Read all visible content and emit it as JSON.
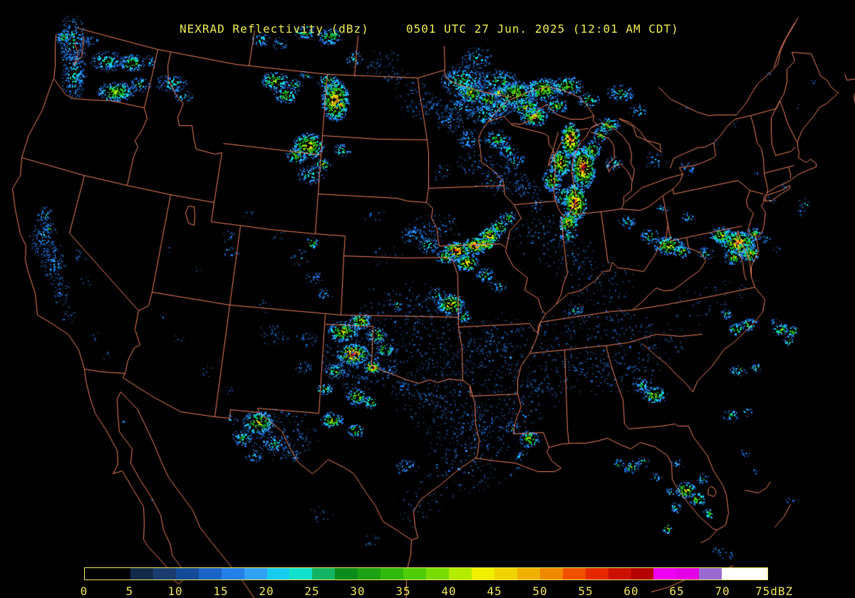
{
  "header": {
    "title": "NEXRAD Reflectivity (dBz)",
    "timestamp": "0501 UTC 27 Jun. 2025 (12:01 AM CDT)"
  },
  "colors": {
    "background": "#000000",
    "map_border": "#ff8a66",
    "title_text": "#f0ee52",
    "colorbar_border": "#f0e85c",
    "colorbar_label": "#f0e85c"
  },
  "colorbar": {
    "min_dbz": 0,
    "max_dbz": 75,
    "segment_dbz_step": 2.5,
    "ticks": [
      "0",
      "5",
      "10",
      "15",
      "20",
      "25",
      "30",
      "35",
      "40",
      "45",
      "50",
      "55",
      "60",
      "65",
      "70",
      "75dBZ"
    ],
    "segment_colors": [
      "#000000",
      "#000000",
      "#122a4a",
      "#1a3c6e",
      "#134b96",
      "#1a64c8",
      "#2480e8",
      "#30a0f4",
      "#18ccf0",
      "#10e0cc",
      "#12b464",
      "#0c8c1c",
      "#1ea014",
      "#30b80c",
      "#50cc08",
      "#78dc04",
      "#b4ec00",
      "#f0f000",
      "#f0d400",
      "#f0b000",
      "#f08800",
      "#f05000",
      "#e62800",
      "#cc1000",
      "#b40000",
      "#f000f0",
      "#e400e4",
      "#9a6ad2",
      "#ffffff",
      "#ffffff"
    ]
  },
  "radar_cells_format": "[x, y, rx, ry, max_dbz, density]",
  "radar_cells": [
    [
      100,
      58,
      14,
      26,
      26,
      0.4
    ],
    [
      103,
      103,
      12,
      24,
      26,
      0.4
    ],
    [
      88,
      52,
      7,
      7,
      34,
      0.6
    ],
    [
      125,
      57,
      8,
      6,
      20,
      0.35
    ],
    [
      150,
      85,
      16,
      10,
      30,
      0.5
    ],
    [
      185,
      88,
      13,
      8,
      38,
      0.6
    ],
    [
      162,
      128,
      18,
      9,
      42,
      0.7
    ],
    [
      196,
      118,
      10,
      8,
      30,
      0.45
    ],
    [
      210,
      86,
      8,
      6,
      25,
      0.35
    ],
    [
      240,
      116,
      15,
      9,
      28,
      0.45
    ],
    [
      256,
      134,
      9,
      6,
      24,
      0.35
    ],
    [
      62,
      300,
      8,
      8,
      24,
      0.35
    ],
    [
      60,
      332,
      13,
      22,
      20,
      0.3
    ],
    [
      74,
      368,
      12,
      20,
      20,
      0.3
    ],
    [
      68,
      320,
      6,
      5,
      30,
      0.4
    ],
    [
      85,
      408,
      9,
      13,
      16,
      0.25
    ],
    [
      95,
      443,
      7,
      9,
      14,
      0.2
    ],
    [
      110,
      360,
      7,
      9,
      12,
      0.18
    ],
    [
      120,
      395,
      6,
      8,
      12,
      0.15
    ],
    [
      132,
      470,
      6,
      6,
      10,
      0.12
    ],
    [
      146,
      498,
      5,
      5,
      10,
      0.1
    ],
    [
      230,
      350,
      8,
      6,
      10,
      0.1
    ],
    [
      280,
      380,
      6,
      5,
      10,
      0.1
    ],
    [
      322,
      355,
      8,
      7,
      16,
      0.22
    ],
    [
      350,
      300,
      6,
      5,
      18,
      0.2
    ],
    [
      320,
      330,
      9,
      7,
      12,
      0.12
    ],
    [
      250,
      475,
      6,
      5,
      12,
      0.12
    ],
    [
      292,
      520,
      7,
      6,
      13,
      0.15
    ],
    [
      320,
      548,
      6,
      5,
      14,
      0.15
    ],
    [
      230,
      445,
      5,
      4,
      11,
      0.1
    ],
    [
      385,
      113,
      13,
      9,
      42,
      0.6
    ],
    [
      400,
      133,
      11,
      8,
      38,
      0.5
    ],
    [
      412,
      119,
      8,
      6,
      30,
      0.4
    ],
    [
      496,
      82,
      8,
      8,
      24,
      0.35
    ],
    [
      460,
      115,
      10,
      8,
      40,
      0.55
    ],
    [
      470,
      140,
      13,
      20,
      54,
      0.75
    ],
    [
      478,
      147,
      5,
      4,
      60,
      0.8
    ],
    [
      432,
      204,
      15,
      12,
      50,
      0.7
    ],
    [
      415,
      217,
      10,
      8,
      40,
      0.5
    ],
    [
      452,
      230,
      8,
      6,
      40,
      0.5
    ],
    [
      480,
      210,
      8,
      6,
      34,
      0.45
    ],
    [
      435,
      245,
      13,
      9,
      28,
      0.4
    ],
    [
      365,
      55,
      9,
      7,
      28,
      0.4
    ],
    [
      392,
      60,
      8,
      6,
      24,
      0.35
    ],
    [
      428,
      45,
      10,
      7,
      33,
      0.45
    ],
    [
      462,
      50,
      12,
      8,
      38,
      0.5
    ],
    [
      430,
      104,
      7,
      5,
      28,
      0.35
    ],
    [
      520,
      300,
      14,
      9,
      11,
      0.1
    ],
    [
      540,
      358,
      18,
      11,
      11,
      0.1
    ],
    [
      585,
      140,
      22,
      18,
      13,
      0.15
    ],
    [
      560,
      110,
      14,
      9,
      14,
      0.15
    ],
    [
      535,
      90,
      20,
      16,
      12,
      0.12
    ],
    [
      668,
      80,
      16,
      10,
      22,
      0.3
    ],
    [
      608,
      150,
      12,
      8,
      17,
      0.25
    ],
    [
      620,
      243,
      16,
      9,
      13,
      0.15
    ],
    [
      650,
      113,
      22,
      16,
      30,
      0.5
    ],
    [
      700,
      113,
      18,
      11,
      30,
      0.45
    ],
    [
      660,
      130,
      12,
      9,
      46,
      0.6
    ],
    [
      685,
      140,
      10,
      8,
      44,
      0.6
    ],
    [
      700,
      128,
      6,
      5,
      52,
      0.7
    ],
    [
      722,
      132,
      20,
      13,
      42,
      0.6
    ],
    [
      738,
      150,
      13,
      9,
      46,
      0.65
    ],
    [
      762,
      125,
      16,
      11,
      44,
      0.6
    ],
    [
      795,
      120,
      16,
      9,
      40,
      0.55
    ],
    [
      825,
      140,
      11,
      7,
      34,
      0.45
    ],
    [
      852,
      175,
      11,
      8,
      38,
      0.5
    ],
    [
      870,
      130,
      13,
      9,
      28,
      0.4
    ],
    [
      895,
      155,
      9,
      7,
      24,
      0.3
    ],
    [
      700,
      150,
      14,
      9,
      30,
      0.45
    ],
    [
      680,
      160,
      18,
      11,
      25,
      0.4
    ],
    [
      645,
      150,
      16,
      9,
      22,
      0.35
    ],
    [
      630,
      170,
      14,
      11,
      20,
      0.3
    ],
    [
      658,
      195,
      12,
      10,
      24,
      0.35
    ],
    [
      697,
      195,
      12,
      9,
      34,
      0.45
    ],
    [
      712,
      210,
      10,
      8,
      28,
      0.4
    ],
    [
      723,
      225,
      9,
      7,
      25,
      0.35
    ],
    [
      748,
      162,
      13,
      9,
      48,
      0.65
    ],
    [
      780,
      148,
      11,
      7,
      40,
      0.55
    ],
    [
      800,
      195,
      9,
      16,
      60,
      0.8
    ],
    [
      786,
      228,
      10,
      13,
      52,
      0.7
    ],
    [
      774,
      252,
      9,
      11,
      44,
      0.6
    ],
    [
      790,
      275,
      8,
      9,
      40,
      0.55
    ],
    [
      818,
      234,
      11,
      20,
      60,
      0.8
    ],
    [
      806,
      284,
      11,
      18,
      58,
      0.8
    ],
    [
      797,
      312,
      9,
      11,
      50,
      0.65
    ],
    [
      795,
      332,
      8,
      6,
      30,
      0.4
    ],
    [
      830,
      210,
      9,
      9,
      44,
      0.6
    ],
    [
      842,
      188,
      8,
      7,
      36,
      0.45
    ],
    [
      860,
      228,
      8,
      7,
      30,
      0.4
    ],
    [
      700,
      250,
      26,
      17,
      14,
      0.18
    ],
    [
      672,
      228,
      22,
      13,
      14,
      0.16
    ],
    [
      738,
      262,
      14,
      10,
      18,
      0.22
    ],
    [
      752,
      285,
      10,
      8,
      16,
      0.2
    ],
    [
      640,
      352,
      13,
      9,
      60,
      0.8
    ],
    [
      666,
      344,
      11,
      8,
      60,
      0.8
    ],
    [
      686,
      330,
      10,
      8,
      54,
      0.7
    ],
    [
      680,
      342,
      8,
      6,
      58,
      0.75
    ],
    [
      700,
      318,
      8,
      7,
      44,
      0.6
    ],
    [
      712,
      305,
      8,
      6,
      34,
      0.45
    ],
    [
      655,
      368,
      11,
      8,
      50,
      0.65
    ],
    [
      624,
      360,
      10,
      7,
      40,
      0.5
    ],
    [
      600,
      344,
      11,
      8,
      30,
      0.4
    ],
    [
      580,
      330,
      13,
      9,
      22,
      0.3
    ],
    [
      610,
      320,
      26,
      15,
      14,
      0.16
    ],
    [
      680,
      385,
      9,
      7,
      30,
      0.4
    ],
    [
      698,
      400,
      8,
      6,
      24,
      0.3
    ],
    [
      632,
      427,
      13,
      10,
      50,
      0.65
    ],
    [
      650,
      444,
      8,
      6,
      34,
      0.45
    ],
    [
      612,
      414,
      9,
      7,
      28,
      0.35
    ],
    [
      558,
      428,
      5,
      4,
      34,
      0.4
    ],
    [
      437,
      340,
      6,
      5,
      42,
      0.45
    ],
    [
      420,
      360,
      10,
      8,
      16,
      0.2
    ],
    [
      440,
      390,
      9,
      7,
      18,
      0.25
    ],
    [
      455,
      412,
      8,
      6,
      22,
      0.3
    ],
    [
      390,
      330,
      9,
      7,
      13,
      0.15
    ],
    [
      380,
      470,
      16,
      12,
      12,
      0.15
    ],
    [
      370,
      430,
      8,
      6,
      14,
      0.15
    ],
    [
      495,
      497,
      15,
      10,
      60,
      0.8
    ],
    [
      522,
      515,
      8,
      6,
      58,
      0.75
    ],
    [
      480,
      465,
      14,
      10,
      46,
      0.6
    ],
    [
      505,
      450,
      11,
      8,
      44,
      0.6
    ],
    [
      528,
      470,
      10,
      8,
      40,
      0.5
    ],
    [
      540,
      490,
      8,
      6,
      44,
      0.55
    ],
    [
      470,
      520,
      10,
      8,
      38,
      0.5
    ],
    [
      455,
      545,
      8,
      6,
      34,
      0.45
    ],
    [
      500,
      556,
      10,
      8,
      42,
      0.55
    ],
    [
      520,
      564,
      8,
      6,
      40,
      0.5
    ],
    [
      465,
      590,
      11,
      8,
      42,
      0.55
    ],
    [
      498,
      604,
      8,
      6,
      38,
      0.5
    ],
    [
      505,
      505,
      36,
      32,
      15,
      0.15
    ],
    [
      430,
      475,
      11,
      8,
      18,
      0.22
    ],
    [
      425,
      515,
      8,
      6,
      22,
      0.28
    ],
    [
      362,
      593,
      15,
      11,
      46,
      0.65
    ],
    [
      340,
      614,
      10,
      8,
      34,
      0.45
    ],
    [
      385,
      623,
      11,
      8,
      30,
      0.4
    ],
    [
      408,
      638,
      9,
      7,
      24,
      0.32
    ],
    [
      355,
      640,
      8,
      6,
      27,
      0.35
    ],
    [
      322,
      590,
      7,
      6,
      20,
      0.25
    ],
    [
      390,
      610,
      38,
      26,
      13,
      0.14
    ],
    [
      545,
      520,
      8,
      6,
      24,
      0.32
    ],
    [
      562,
      544,
      9,
      7,
      21,
      0.28
    ],
    [
      598,
      558,
      8,
      6,
      19,
      0.25
    ],
    [
      570,
      655,
      11,
      8,
      21,
      0.28
    ],
    [
      592,
      478,
      55,
      42,
      11,
      0.1
    ],
    [
      622,
      558,
      50,
      40,
      11,
      0.1
    ],
    [
      660,
      608,
      42,
      34,
      11,
      0.1
    ],
    [
      562,
      430,
      42,
      26,
      11,
      0.09
    ],
    [
      700,
      500,
      40,
      34,
      11,
      0.09
    ],
    [
      730,
      558,
      36,
      30,
      11,
      0.09
    ],
    [
      640,
      660,
      38,
      26,
      11,
      0.09
    ],
    [
      590,
      708,
      26,
      22,
      10,
      0.08
    ],
    [
      520,
      758,
      8,
      6,
      16,
      0.2
    ],
    [
      450,
      722,
      13,
      9,
      11,
      0.1
    ],
    [
      760,
      330,
      34,
      22,
      11,
      0.1
    ],
    [
      800,
      360,
      30,
      22,
      11,
      0.1
    ],
    [
      840,
      392,
      34,
      24,
      11,
      0.1
    ],
    [
      840,
      440,
      34,
      24,
      10,
      0.09
    ],
    [
      878,
      468,
      30,
      22,
      10,
      0.09
    ],
    [
      700,
      470,
      30,
      22,
      10,
      0.09
    ],
    [
      670,
      500,
      26,
      18,
      11,
      0.1
    ],
    [
      690,
      600,
      34,
      26,
      11,
      0.1
    ],
    [
      780,
      480,
      42,
      30,
      11,
      0.1
    ],
    [
      820,
      520,
      38,
      26,
      11,
      0.1
    ],
    [
      760,
      540,
      30,
      22,
      10,
      0.09
    ],
    [
      880,
      520,
      34,
      24,
      11,
      0.1
    ],
    [
      920,
      480,
      30,
      22,
      10,
      0.08
    ],
    [
      980,
      430,
      26,
      17,
      9,
      0.08
    ],
    [
      1020,
      410,
      22,
      15,
      9,
      0.07
    ],
    [
      742,
      616,
      9,
      8,
      44,
      0.6
    ],
    [
      718,
      600,
      8,
      6,
      27,
      0.35
    ],
    [
      730,
      640,
      7,
      5,
      24,
      0.3
    ],
    [
      805,
      435,
      10,
      7,
      22,
      0.3
    ],
    [
      918,
      554,
      12,
      8,
      42,
      0.55
    ],
    [
      900,
      540,
      9,
      7,
      28,
      0.38
    ],
    [
      1032,
      462,
      8,
      6,
      40,
      0.5
    ],
    [
      1018,
      440,
      6,
      5,
      30,
      0.38
    ],
    [
      1050,
      455,
      8,
      6,
      35,
      0.45
    ],
    [
      1095,
      462,
      8,
      6,
      38,
      0.48
    ],
    [
      1106,
      478,
      6,
      5,
      34,
      0.42
    ],
    [
      1088,
      452,
      5,
      4,
      30,
      0.35
    ],
    [
      1112,
      465,
      6,
      5,
      40,
      0.45
    ],
    [
      1025,
      582,
      8,
      5,
      30,
      0.4
    ],
    [
      1048,
      578,
      6,
      4,
      28,
      0.35
    ],
    [
      1035,
      520,
      8,
      5,
      32,
      0.4
    ],
    [
      1060,
      515,
      6,
      5,
      28,
      0.35
    ],
    [
      938,
      344,
      14,
      9,
      46,
      0.62
    ],
    [
      912,
      331,
      10,
      7,
      34,
      0.45
    ],
    [
      956,
      352,
      8,
      6,
      40,
      0.5
    ],
    [
      1035,
      340,
      16,
      11,
      56,
      0.75
    ],
    [
      1044,
      350,
      8,
      6,
      60,
      0.7
    ],
    [
      1012,
      330,
      11,
      8,
      44,
      0.58
    ],
    [
      1052,
      356,
      9,
      7,
      48,
      0.6
    ],
    [
      1028,
      360,
      9,
      7,
      44,
      0.55
    ],
    [
      990,
      355,
      8,
      6,
      30,
      0.4
    ],
    [
      965,
      305,
      7,
      5,
      24,
      0.3
    ],
    [
      880,
      310,
      9,
      7,
      26,
      0.35
    ],
    [
      928,
      292,
      7,
      5,
      22,
      0.28
    ],
    [
      1058,
      328,
      8,
      6,
      40,
      0.5
    ],
    [
      920,
      225,
      11,
      9,
      19,
      0.25
    ],
    [
      963,
      235,
      9,
      7,
      17,
      0.22
    ],
    [
      1080,
      280,
      6,
      4,
      19,
      0.25
    ],
    [
      1100,
      260,
      5,
      4,
      15,
      0.2
    ],
    [
      1062,
      242,
      5,
      4,
      14,
      0.18
    ],
    [
      1122,
      298,
      6,
      4,
      17,
      0.22
    ],
    [
      1128,
      285,
      7,
      5,
      20,
      0.25
    ],
    [
      1000,
      200,
      6,
      4,
      14,
      0.18
    ],
    [
      1030,
      172,
      5,
      4,
      12,
      0.15
    ],
    [
      962,
      152,
      6,
      4,
      12,
      0.15
    ],
    [
      1080,
      105,
      6,
      4,
      13,
      0.15
    ],
    [
      1115,
      150,
      5,
      4,
      12,
      0.13
    ],
    [
      1140,
      115,
      5,
      4,
      14,
      0.15
    ],
    [
      962,
      688,
      10,
      8,
      46,
      0.6
    ],
    [
      978,
      700,
      8,
      6,
      44,
      0.55
    ],
    [
      948,
      712,
      6,
      5,
      34,
      0.42
    ],
    [
      985,
      672,
      6,
      5,
      30,
      0.38
    ],
    [
      940,
      690,
      5,
      4,
      30,
      0.35
    ],
    [
      995,
      720,
      6,
      5,
      34,
      0.42
    ],
    [
      936,
      742,
      5,
      4,
      44,
      0.5
    ],
    [
      885,
      655,
      8,
      6,
      34,
      0.45
    ],
    [
      868,
      650,
      6,
      5,
      30,
      0.38
    ],
    [
      902,
      648,
      6,
      5,
      28,
      0.35
    ],
    [
      920,
      670,
      6,
      5,
      24,
      0.3
    ],
    [
      950,
      650,
      7,
      5,
      20,
      0.26
    ],
    [
      1008,
      772,
      6,
      4,
      24,
      0.3
    ],
    [
      1045,
      635,
      5,
      4,
      20,
      0.25
    ],
    [
      1060,
      660,
      5,
      4,
      17,
      0.2
    ],
    [
      1110,
      702,
      8,
      4,
      16,
      0.2
    ],
    [
      1020,
      780,
      10,
      4,
      15,
      0.18
    ],
    [
      700,
      680,
      6,
      3,
      14,
      0.2
    ],
    [
      714,
      668,
      6,
      3,
      14,
      0.2
    ],
    [
      727,
      657,
      6,
      3,
      14,
      0.2
    ],
    [
      1075,
      335,
      6,
      4,
      22,
      0.28
    ],
    [
      1090,
      350,
      5,
      4,
      18,
      0.22
    ],
    [
      175,
      590,
      5,
      4,
      12,
      0.12
    ],
    [
      186,
      640,
      4,
      3,
      12,
      0.1
    ],
    [
      210,
      700,
      4,
      3,
      13,
      0.1
    ]
  ]
}
